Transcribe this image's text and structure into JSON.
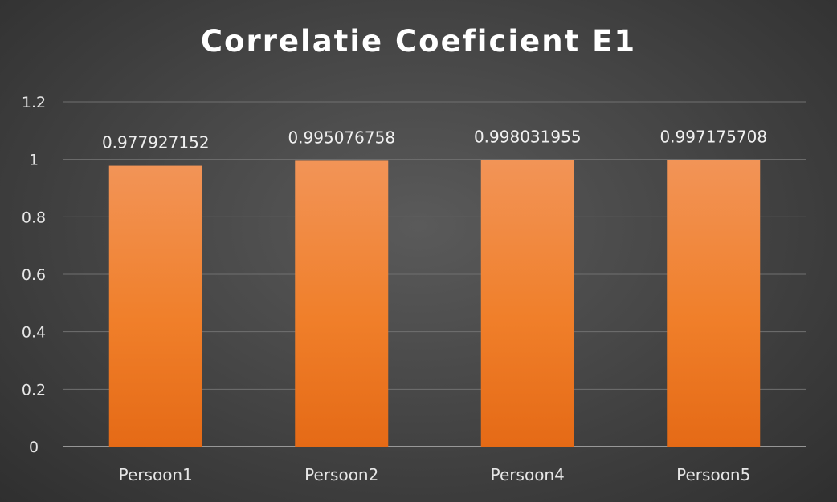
{
  "chart_data": {
    "type": "bar",
    "title": "Correlatie Coeficient E1",
    "categories": [
      "Persoon1",
      "Persoon2",
      "Persoon4",
      "Persoon5"
    ],
    "values": [
      0.977927152,
      0.995076758,
      0.998031955,
      0.997175708
    ],
    "data_labels": [
      "0.977927152",
      "0.995076758",
      "0.998031955",
      "0.997175708"
    ],
    "ylim": [
      0,
      1.2
    ],
    "yticks": [
      0,
      0.2,
      0.4,
      0.6,
      0.8,
      1,
      1.2
    ],
    "ytick_labels": [
      "0",
      "0.2",
      "0.4",
      "0.6",
      "0.8",
      "1",
      "1.2"
    ],
    "grid": true,
    "legend": "none",
    "colors": {
      "bar_top": "#f29457",
      "bar_mid": "#f07f2a",
      "bar_bottom": "#e56a16",
      "grid": "#707070",
      "axis": "#b5b5b5",
      "text": "#e6e6e6",
      "title": "#ffffff"
    }
  }
}
